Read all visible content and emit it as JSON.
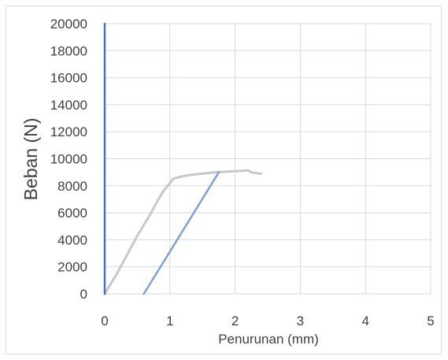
{
  "chart_data": {
    "type": "line",
    "title": "",
    "xlabel": "Penurunan (mm)",
    "ylabel": "Beban (N)",
    "xlim": [
      0,
      5
    ],
    "ylim": [
      0,
      20000
    ],
    "x_ticks": [
      0,
      1,
      2,
      3,
      4,
      5
    ],
    "y_ticks": [
      0,
      2000,
      4000,
      6000,
      8000,
      10000,
      12000,
      14000,
      16000,
      18000,
      20000
    ],
    "x_tick_labels": [
      "0",
      "1",
      "2",
      "3",
      "4",
      "5"
    ],
    "y_tick_labels": [
      "0",
      "2000",
      "4000",
      "6000",
      "8000",
      "10000",
      "12000",
      "14000",
      "16000",
      "18000",
      "20000"
    ],
    "grid": true,
    "legend": "none",
    "series": [
      {
        "color": "#c8c8c8",
        "x": [
          0,
          0.1,
          0.2,
          0.3,
          0.4,
          0.5,
          0.6,
          0.7,
          0.8,
          0.9,
          1.0,
          1.05,
          1.1,
          1.2,
          1.3,
          1.5,
          1.7,
          1.9,
          2.1,
          2.2,
          2.25,
          2.3,
          2.4
        ],
        "y": [
          0,
          800,
          1600,
          2500,
          3400,
          4300,
          5100,
          5900,
          6800,
          7600,
          8200,
          8500,
          8600,
          8700,
          8800,
          8900,
          9000,
          9050,
          9100,
          9150,
          9000,
          8950,
          8900
        ]
      },
      {
        "color": "#7ea2d6",
        "x": [
          0.6,
          1.75
        ],
        "y": [
          0,
          9000
        ]
      },
      {
        "color": "#4472c4",
        "x": [
          0,
          0
        ],
        "y": [
          0,
          20000
        ]
      }
    ]
  }
}
